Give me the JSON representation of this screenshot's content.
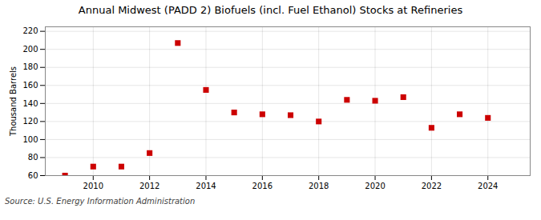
{
  "chart_data": {
    "type": "scatter",
    "title": "Annual Midwest (PADD 2) Biofuels (incl. Fuel Ethanol) Stocks at Refineries",
    "ylabel": "Thousand Barrels",
    "annotations": [
      "Source: U.S. Energy Information Administration"
    ],
    "x": [
      2009,
      2010,
      2011,
      2012,
      2013,
      2014,
      2015,
      2016,
      2017,
      2018,
      2019,
      2020,
      2021,
      2022,
      2023,
      2024
    ],
    "values": [
      60,
      70,
      70,
      85,
      207,
      155,
      130,
      128,
      127,
      120,
      144,
      143,
      147,
      113,
      128,
      124
    ],
    "color": "#cc0000",
    "marker": "square",
    "xlim": [
      2008.3,
      2025.5
    ],
    "ylim": [
      60,
      225
    ],
    "xticks": [
      2010,
      2012,
      2014,
      2016,
      2018,
      2020,
      2022,
      2024
    ],
    "yticks": [
      60,
      80,
      100,
      120,
      140,
      160,
      180,
      200,
      220
    ],
    "grid": true
  }
}
